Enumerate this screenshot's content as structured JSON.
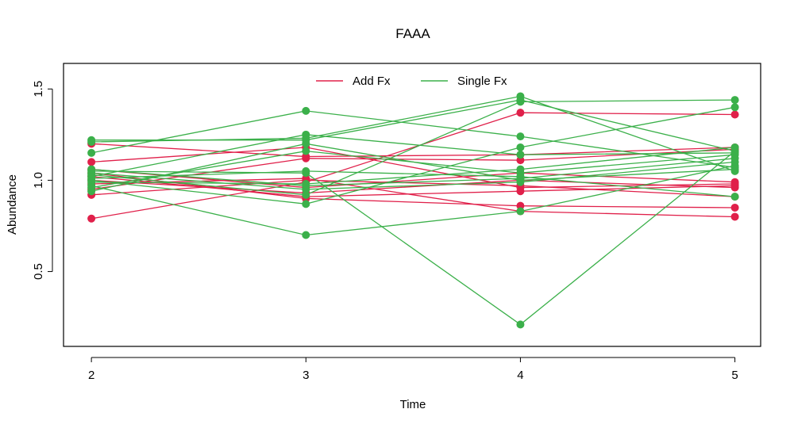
{
  "chart_data": {
    "type": "line",
    "title": "FAAA",
    "xlabel": "Time",
    "ylabel": "Abundance",
    "x": [
      2,
      3,
      4,
      5
    ],
    "xlim": [
      1.87,
      5.12
    ],
    "ylim": [
      0.09,
      1.64
    ],
    "x_ticks": [
      "2",
      "3",
      "4",
      "5"
    ],
    "y_ticks": [
      "0.5",
      "1.0",
      "1.5"
    ],
    "y_tick_values": [
      0.5,
      1.0,
      1.5
    ],
    "legend": {
      "placement": "top-center",
      "entries": [
        {
          "label": "Add Fx",
          "color": "#e0204a"
        },
        {
          "label": "Single Fx",
          "color": "#3bb04a"
        }
      ]
    },
    "colors": {
      "add_fx": "#e0204a",
      "single_fx": "#3bb04a"
    },
    "series": [
      {
        "group": "add_fx",
        "values": [
          0.79,
          0.99,
          1.37,
          1.36
        ]
      },
      {
        "group": "add_fx",
        "values": [
          1.2,
          1.13,
          1.14,
          1.18
        ]
      },
      {
        "group": "add_fx",
        "values": [
          1.1,
          1.18,
          0.96,
          0.98
        ]
      },
      {
        "group": "add_fx",
        "values": [
          1.04,
          0.9,
          0.86,
          0.85
        ]
      },
      {
        "group": "add_fx",
        "values": [
          0.98,
          1.01,
          0.83,
          0.8
        ]
      },
      {
        "group": "add_fx",
        "values": [
          0.92,
          1.0,
          0.97,
          0.91
        ]
      },
      {
        "group": "add_fx",
        "values": [
          0.95,
          1.12,
          1.11,
          1.17
        ]
      },
      {
        "group": "add_fx",
        "values": [
          1.0,
          0.93,
          1.0,
          0.96
        ]
      },
      {
        "group": "add_fx",
        "values": [
          1.06,
          0.96,
          1.04,
          0.99
        ]
      },
      {
        "group": "add_fx",
        "values": [
          1.02,
          0.91,
          0.94,
          0.97
        ]
      },
      {
        "group": "single_fx",
        "values": [
          1.15,
          1.38,
          1.24,
          1.07
        ]
      },
      {
        "group": "single_fx",
        "values": [
          1.22,
          1.22,
          1.44,
          1.16
        ]
      },
      {
        "group": "single_fx",
        "values": [
          1.21,
          1.23,
          1.46,
          1.05
        ]
      },
      {
        "group": "single_fx",
        "values": [
          1.02,
          1.25,
          1.14,
          1.15
        ]
      },
      {
        "group": "single_fx",
        "values": [
          0.97,
          0.7,
          0.83,
          1.08
        ]
      },
      {
        "group": "single_fx",
        "values": [
          1.05,
          1.04,
          0.21,
          1.16
        ]
      },
      {
        "group": "single_fx",
        "values": [
          1.0,
          0.87,
          1.18,
          1.4
        ]
      },
      {
        "group": "single_fx",
        "values": [
          1.03,
          0.92,
          1.43,
          1.44
        ]
      },
      {
        "group": "single_fx",
        "values": [
          0.96,
          1.16,
          1.04,
          1.14
        ]
      },
      {
        "group": "single_fx",
        "values": [
          1.01,
          1.05,
          1.02,
          0.91
        ]
      },
      {
        "group": "single_fx",
        "values": [
          1.04,
          0.95,
          0.99,
          1.1
        ]
      },
      {
        "group": "single_fx",
        "values": [
          0.99,
          0.98,
          1.06,
          1.18
        ]
      },
      {
        "group": "single_fx",
        "values": [
          0.94,
          1.2,
          1.0,
          1.06
        ]
      },
      {
        "group": "single_fx",
        "values": [
          1.06,
          0.97,
          1.01,
          1.12
        ]
      }
    ]
  }
}
